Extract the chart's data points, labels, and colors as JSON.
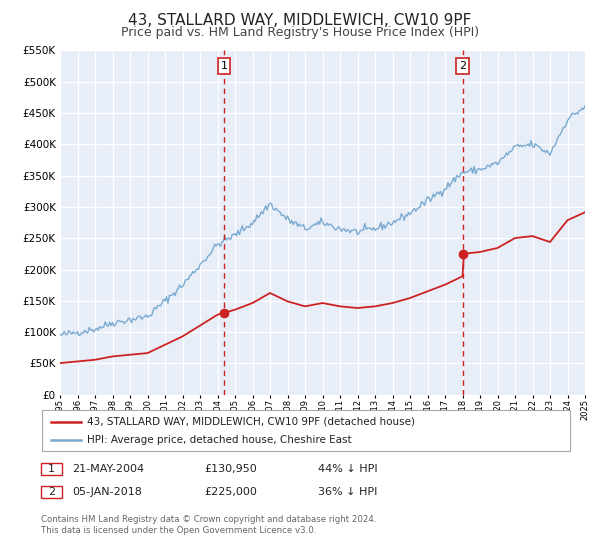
{
  "title": "43, STALLARD WAY, MIDDLEWICH, CW10 9PF",
  "subtitle": "Price paid vs. HM Land Registry's House Price Index (HPI)",
  "title_fontsize": 11,
  "subtitle_fontsize": 9,
  "background_color": "#ffffff",
  "plot_bg_color": "#e8eef8",
  "grid_color": "#ffffff",
  "hpi_color": "#7aaad0",
  "price_color": "#cc2222",
  "vline_color": "#cc2222",
  "ylim": [
    0,
    550000
  ],
  "yticks": [
    0,
    50000,
    100000,
    150000,
    200000,
    250000,
    300000,
    350000,
    400000,
    450000,
    500000,
    550000
  ],
  "event1_x": 2004.38,
  "event1_y": 130950,
  "event1_label": "1",
  "event2_x": 2018.01,
  "event2_y": 225000,
  "event2_label": "2",
  "legend_line1": "43, STALLARD WAY, MIDDLEWICH, CW10 9PF (detached house)",
  "legend_line2": "HPI: Average price, detached house, Cheshire East",
  "table_row1": [
    "1",
    "21-MAY-2004",
    "£130,950",
    "44% ↓ HPI"
  ],
  "table_row2": [
    "2",
    "05-JAN-2018",
    "£225,000",
    "36% ↓ HPI"
  ],
  "footer1": "Contains HM Land Registry data © Crown copyright and database right 2024.",
  "footer2": "This data is licensed under the Open Government Licence v3.0.",
  "xmin": 1995,
  "xmax": 2025
}
